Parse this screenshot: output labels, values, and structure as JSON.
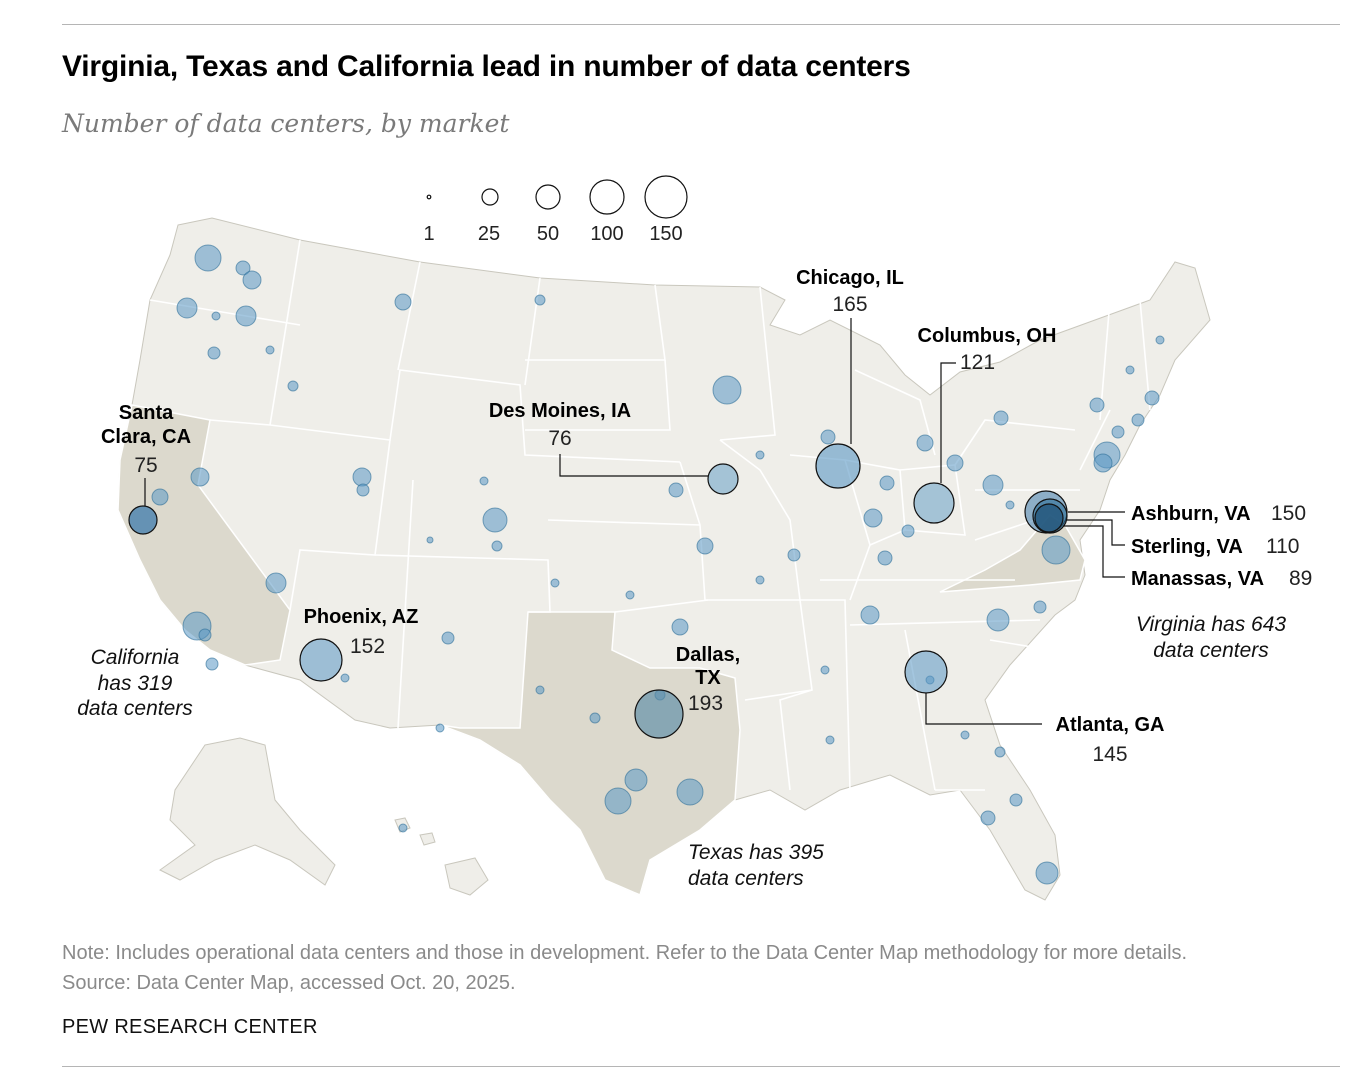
{
  "title": "Virginia, Texas and California lead in number of data centers",
  "subtitle": "Number of data centers, by market",
  "legend": {
    "sizes": [
      1,
      25,
      50,
      100,
      150
    ],
    "labels": [
      "1",
      "25",
      "50",
      "100",
      "150"
    ]
  },
  "highlight_states": [
    "California",
    "Texas",
    "Virginia"
  ],
  "colors": {
    "land": "#efeee9",
    "highlight_land": "#dcd9cd",
    "state_border": "#ffffff",
    "bubble_fill": "#5a97c4",
    "bubble_stroke": "#2d6e98",
    "callout_stroke": "#111111"
  },
  "callouts": [
    {
      "id": "santa-clara",
      "name_lines": [
        "Santa",
        "Clara, CA"
      ],
      "value": 75
    },
    {
      "id": "des-moines",
      "name_lines": [
        "Des Moines, IA"
      ],
      "value": 76
    },
    {
      "id": "chicago",
      "name_lines": [
        "Chicago, IL"
      ],
      "value": 165
    },
    {
      "id": "columbus",
      "name_lines": [
        "Columbus, OH"
      ],
      "value": 121
    },
    {
      "id": "phoenix",
      "name_lines": [
        "Phoenix, AZ"
      ],
      "value": 152
    },
    {
      "id": "dallas",
      "name_lines": [
        "Dallas,",
        "TX"
      ],
      "value": 193
    },
    {
      "id": "atlanta",
      "name_lines": [
        "Atlanta, GA"
      ],
      "value": 145
    },
    {
      "id": "ashburn",
      "name_lines": [
        "Ashburn, VA"
      ],
      "value": 150
    },
    {
      "id": "sterling",
      "name_lines": [
        "Sterling, VA"
      ],
      "value": 110
    },
    {
      "id": "manassas",
      "name_lines": [
        "Manassas, VA"
      ],
      "value": 89
    }
  ],
  "state_notes": [
    {
      "id": "california",
      "lines": [
        "California",
        "has 319",
        "data centers"
      ]
    },
    {
      "id": "texas",
      "lines": [
        "Texas has 395",
        "data centers"
      ]
    },
    {
      "id": "virginia",
      "lines": [
        "Virginia has 643",
        "data centers"
      ]
    }
  ],
  "note": "Note: Includes operational data centers and those in development. Refer to the Data Center Map methodology for more details.",
  "source": "Source: Data Center Map, accessed Oct. 20, 2025.",
  "brand": "PEW RESEARCH CENTER"
}
